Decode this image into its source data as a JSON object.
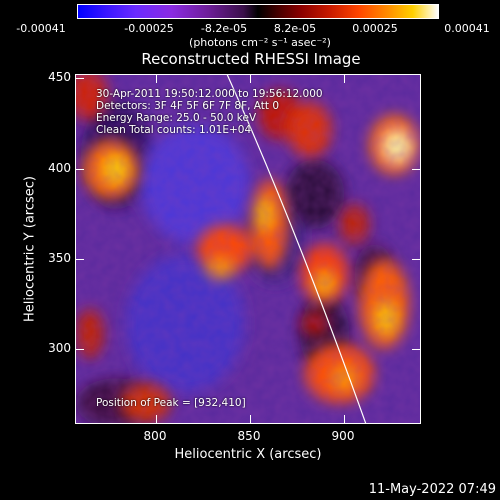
{
  "colorbar": {
    "ticks": [
      "-0.00041",
      "-0.00025",
      "-8.2e-05",
      "8.2e-05",
      "0.00025",
      "0.00041"
    ],
    "units": "(photons cm⁻² s⁻¹ asec⁻²)"
  },
  "title": "Reconstructed RHESSI Image",
  "annotations": {
    "time": "30-Apr-2011 19:50:12.000 to 19:56:12.000",
    "detectors": "Detectors: 3F 4F 5F 6F 7F 8F, Att 0",
    "energy": "Energy Range: 25.0 - 50.0 keV",
    "clean": "Clean    Total counts: 1.01E+04",
    "peak": "Position of Peak = [932,410]"
  },
  "axes": {
    "xlabel": "Heliocentric X (arcsec)",
    "ylabel": "Heliocentric Y (arcsec)",
    "xticks": [
      "800",
      "850",
      "900"
    ],
    "yticks": [
      "450",
      "400",
      "350",
      "300"
    ]
  },
  "timestamp": "11-May-2022 07:49",
  "colors": {
    "background": "#000000",
    "limb": "#ffffff"
  }
}
